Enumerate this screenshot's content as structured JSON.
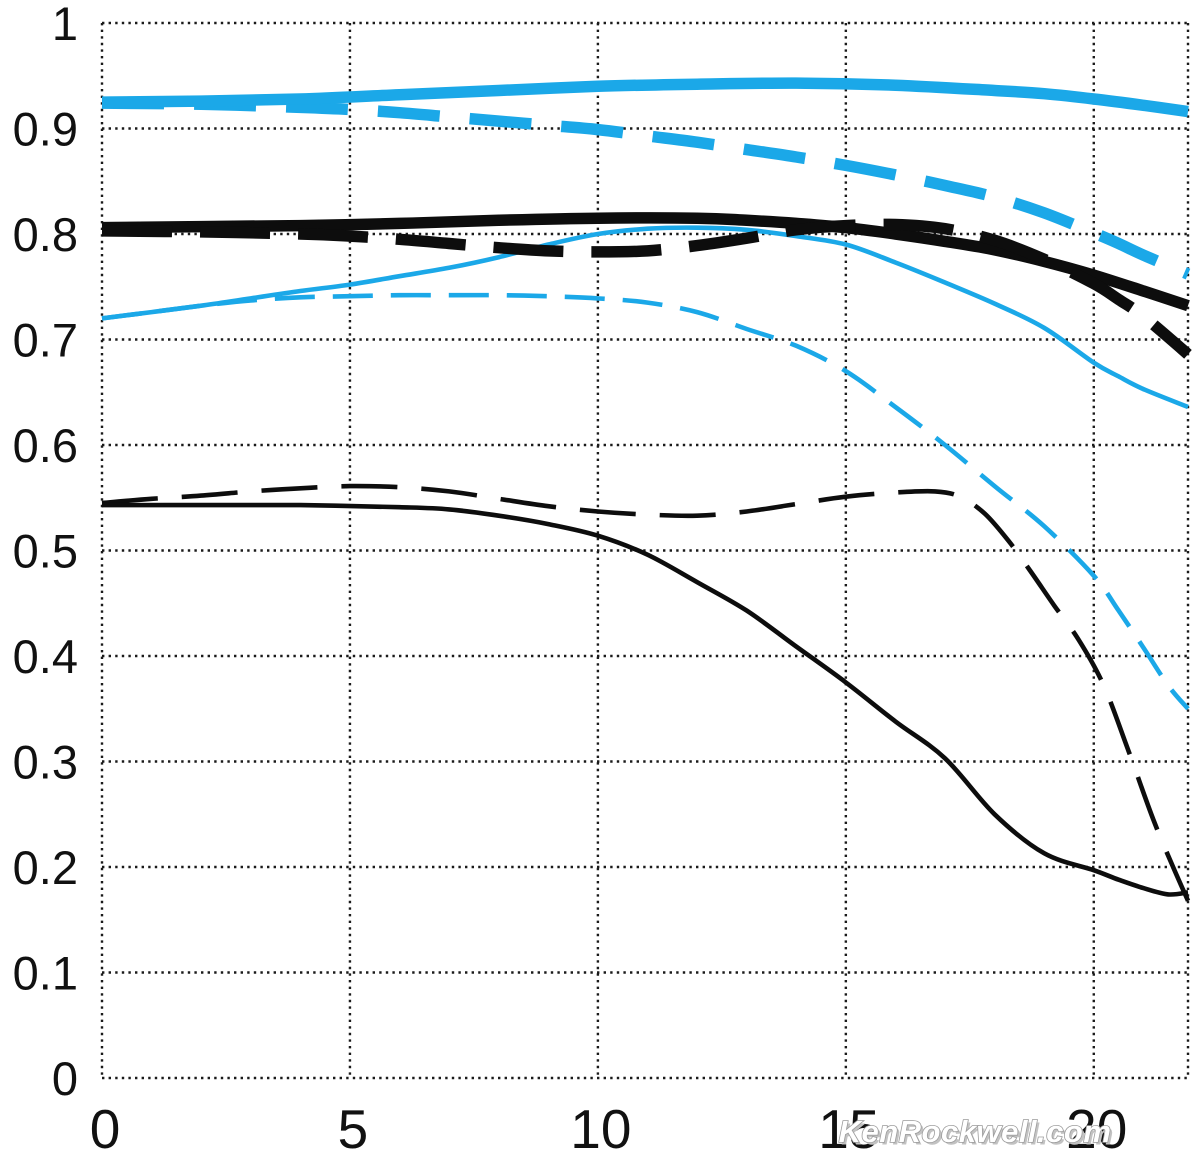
{
  "page": {
    "background": "#ffffff"
  },
  "watermark": {
    "text": "KenRockwell.com"
  },
  "colors": {
    "cyan": "#1ba8e8",
    "black": "#0d0d0d",
    "grid": "#1a1a1a",
    "label": "#111111",
    "background": "#ffffff",
    "watermark_fill": "#ffffff",
    "watermark_outline": "#9b9b9b"
  },
  "chart_data": {
    "type": "line",
    "title": "",
    "xlabel": "",
    "ylabel": "",
    "legend": "none",
    "grid": {
      "style": "dotted",
      "horizontal_at": [
        0,
        0.1,
        0.2,
        0.3,
        0.4,
        0.5,
        0.6,
        0.7,
        0.8,
        0.9,
        1
      ],
      "vertical_at": [
        0,
        5,
        10,
        15,
        20,
        21.9
      ]
    },
    "x_axis": {
      "range": [
        0,
        21.9
      ],
      "ticks": [
        0,
        5,
        10,
        15,
        20
      ],
      "tick_labels": [
        "0",
        "5",
        "10",
        "15",
        "20"
      ]
    },
    "y_axis": {
      "range": [
        0,
        1
      ],
      "ticks": [
        1,
        0.9,
        0.8,
        0.7,
        0.6,
        0.5,
        0.4,
        0.3,
        0.2,
        0.1,
        0
      ],
      "tick_labels": [
        "1",
        "0.9",
        "0.8",
        "0.7",
        "0.6",
        "0.5",
        "0.4",
        "0.3",
        "0.2",
        "0.1",
        "0"
      ]
    },
    "series": [
      {
        "id": "thick-cyan-solid",
        "color": "cyan",
        "weight": "thick",
        "style": "solid",
        "points": [
          [
            0,
            0.925
          ],
          [
            2,
            0.926
          ],
          [
            4,
            0.928
          ],
          [
            6,
            0.932
          ],
          [
            8,
            0.936
          ],
          [
            10,
            0.94
          ],
          [
            12,
            0.942
          ],
          [
            14,
            0.943
          ],
          [
            16,
            0.941
          ],
          [
            18,
            0.936
          ],
          [
            19,
            0.933
          ],
          [
            20,
            0.928
          ],
          [
            21,
            0.922
          ],
          [
            21.9,
            0.916
          ]
        ]
      },
      {
        "id": "thick-cyan-dashed",
        "color": "cyan",
        "weight": "thick",
        "style": "dashed",
        "points": [
          [
            0,
            0.924
          ],
          [
            2,
            0.923
          ],
          [
            4,
            0.92
          ],
          [
            5,
            0.918
          ],
          [
            6,
            0.915
          ],
          [
            7,
            0.911
          ],
          [
            8,
            0.907
          ],
          [
            9,
            0.903
          ],
          [
            10,
            0.899
          ],
          [
            11,
            0.893
          ],
          [
            12,
            0.887
          ],
          [
            13,
            0.88
          ],
          [
            14,
            0.873
          ],
          [
            15,
            0.865
          ],
          [
            16,
            0.856
          ],
          [
            17,
            0.846
          ],
          [
            18,
            0.835
          ],
          [
            19,
            0.82
          ],
          [
            20,
            0.801
          ],
          [
            20.5,
            0.791
          ],
          [
            21,
            0.78
          ],
          [
            21.9,
            0.762
          ]
        ]
      },
      {
        "id": "thick-black-solid",
        "color": "black",
        "weight": "thick",
        "style": "solid",
        "points": [
          [
            0,
            0.806
          ],
          [
            2,
            0.807
          ],
          [
            4,
            0.808
          ],
          [
            6,
            0.81
          ],
          [
            8,
            0.813
          ],
          [
            10,
            0.815
          ],
          [
            12,
            0.815
          ],
          [
            13,
            0.813
          ],
          [
            14,
            0.81
          ],
          [
            15,
            0.806
          ],
          [
            16,
            0.8
          ],
          [
            17,
            0.793
          ],
          [
            18,
            0.785
          ],
          [
            19,
            0.774
          ],
          [
            20,
            0.761
          ],
          [
            21,
            0.746
          ],
          [
            21.9,
            0.732
          ]
        ]
      },
      {
        "id": "thick-black-dashed",
        "color": "black",
        "weight": "thick",
        "style": "dashed",
        "points": [
          [
            0,
            0.803
          ],
          [
            2,
            0.802
          ],
          [
            4,
            0.8
          ],
          [
            5,
            0.798
          ],
          [
            6,
            0.795
          ],
          [
            7,
            0.791
          ],
          [
            8,
            0.787
          ],
          [
            9,
            0.784
          ],
          [
            10,
            0.783
          ],
          [
            11,
            0.784
          ],
          [
            12,
            0.789
          ],
          [
            13,
            0.796
          ],
          [
            14,
            0.804
          ],
          [
            15,
            0.808
          ],
          [
            16,
            0.809
          ],
          [
            17,
            0.805
          ],
          [
            18,
            0.794
          ],
          [
            19,
            0.776
          ],
          [
            20,
            0.753
          ],
          [
            20.5,
            0.738
          ],
          [
            21,
            0.722
          ],
          [
            21.9,
            0.686
          ]
        ]
      },
      {
        "id": "thin-cyan-solid",
        "color": "cyan",
        "weight": "thin",
        "style": "solid",
        "points": [
          [
            0,
            0.72
          ],
          [
            1,
            0.726
          ],
          [
            2,
            0.732
          ],
          [
            3,
            0.739
          ],
          [
            4,
            0.746
          ],
          [
            5,
            0.752
          ],
          [
            6,
            0.76
          ],
          [
            7,
            0.768
          ],
          [
            8,
            0.778
          ],
          [
            9,
            0.79
          ],
          [
            10,
            0.8
          ],
          [
            11,
            0.805
          ],
          [
            12,
            0.806
          ],
          [
            13,
            0.804
          ],
          [
            14,
            0.798
          ],
          [
            15,
            0.79
          ],
          [
            16,
            0.773
          ],
          [
            17,
            0.754
          ],
          [
            18,
            0.734
          ],
          [
            19,
            0.711
          ],
          [
            20,
            0.678
          ],
          [
            20.5,
            0.665
          ],
          [
            21,
            0.653
          ],
          [
            21.9,
            0.636
          ]
        ]
      },
      {
        "id": "thin-cyan-dashed",
        "color": "cyan",
        "weight": "thin",
        "style": "dashed",
        "points": [
          [
            0,
            0.72
          ],
          [
            1,
            0.726
          ],
          [
            2,
            0.732
          ],
          [
            3,
            0.737
          ],
          [
            4,
            0.74
          ],
          [
            5,
            0.741
          ],
          [
            6,
            0.742
          ],
          [
            7,
            0.742
          ],
          [
            8,
            0.742
          ],
          [
            9,
            0.741
          ],
          [
            10,
            0.739
          ],
          [
            11,
            0.735
          ],
          [
            12,
            0.726
          ],
          [
            13,
            0.71
          ],
          [
            14,
            0.694
          ],
          [
            15,
            0.67
          ],
          [
            16,
            0.636
          ],
          [
            17,
            0.6
          ],
          [
            18,
            0.561
          ],
          [
            19,
            0.523
          ],
          [
            20,
            0.476
          ],
          [
            20.5,
            0.443
          ],
          [
            21,
            0.408
          ],
          [
            21.5,
            0.372
          ],
          [
            21.9,
            0.35
          ]
        ]
      },
      {
        "id": "thin-black-solid",
        "color": "black",
        "weight": "thin",
        "style": "solid",
        "points": [
          [
            0,
            0.543
          ],
          [
            2,
            0.543
          ],
          [
            4,
            0.543
          ],
          [
            6,
            0.541
          ],
          [
            7,
            0.539
          ],
          [
            8,
            0.533
          ],
          [
            9,
            0.525
          ],
          [
            10,
            0.514
          ],
          [
            11,
            0.496
          ],
          [
            12,
            0.47
          ],
          [
            13,
            0.443
          ],
          [
            14,
            0.409
          ],
          [
            15,
            0.375
          ],
          [
            16,
            0.338
          ],
          [
            17,
            0.303
          ],
          [
            18,
            0.25
          ],
          [
            19,
            0.213
          ],
          [
            20,
            0.197
          ],
          [
            20.5,
            0.188
          ],
          [
            21,
            0.18
          ],
          [
            21.5,
            0.174
          ],
          [
            21.9,
            0.176
          ]
        ]
      },
      {
        "id": "thin-black-dashed",
        "color": "black",
        "weight": "thin",
        "style": "dashed",
        "points": [
          [
            0,
            0.545
          ],
          [
            1,
            0.549
          ],
          [
            2,
            0.552
          ],
          [
            3,
            0.556
          ],
          [
            4,
            0.559
          ],
          [
            5,
            0.561
          ],
          [
            6,
            0.56
          ],
          [
            7,
            0.556
          ],
          [
            8,
            0.549
          ],
          [
            9,
            0.542
          ],
          [
            10,
            0.537
          ],
          [
            11,
            0.534
          ],
          [
            12,
            0.533
          ],
          [
            13,
            0.537
          ],
          [
            14,
            0.544
          ],
          [
            15,
            0.551
          ],
          [
            16,
            0.555
          ],
          [
            16.8,
            0.556
          ],
          [
            17.3,
            0.551
          ],
          [
            17.8,
            0.535
          ],
          [
            18.3,
            0.508
          ],
          [
            18.7,
            0.482
          ],
          [
            19.2,
            0.448
          ],
          [
            19.7,
            0.415
          ],
          [
            20.2,
            0.372
          ],
          [
            20.7,
            0.31
          ],
          [
            21.2,
            0.245
          ],
          [
            21.6,
            0.2
          ],
          [
            21.9,
            0.168
          ]
        ]
      }
    ]
  }
}
